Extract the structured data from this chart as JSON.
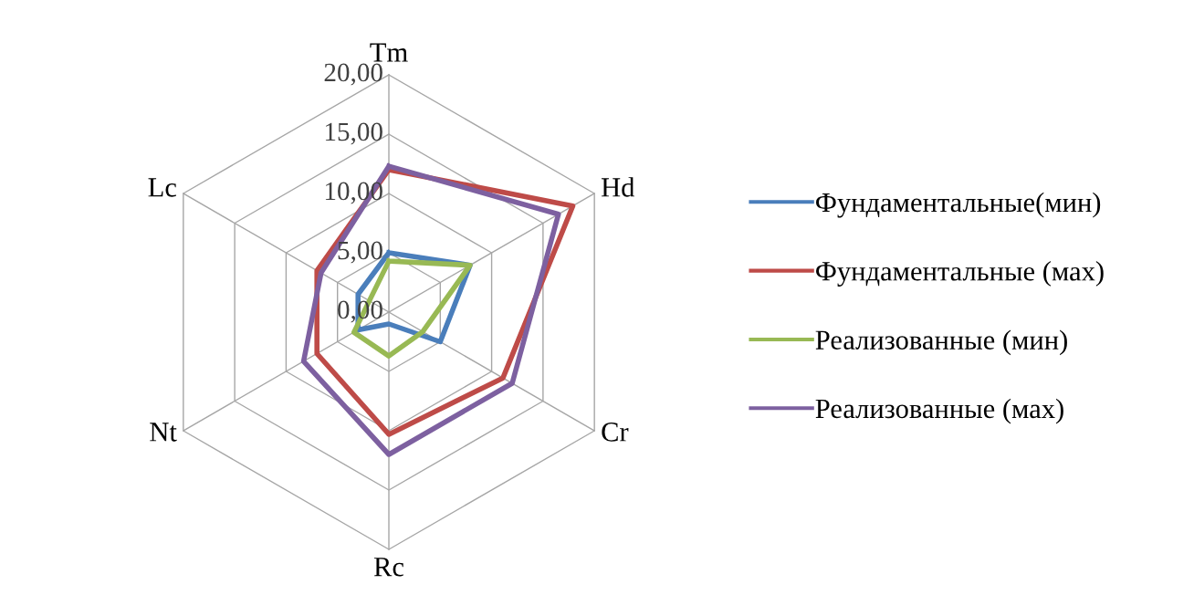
{
  "chart_data": {
    "type": "radar",
    "categories": [
      "Tm",
      "Hd",
      "Cr",
      "Rc",
      "Nt",
      "Lc"
    ],
    "ylim": [
      0,
      20
    ],
    "yticks": [
      {
        "value": 0,
        "label": "0,00"
      },
      {
        "value": 5,
        "label": "5,00"
      },
      {
        "value": 10,
        "label": "10,00"
      },
      {
        "value": 15,
        "label": "15,00"
      },
      {
        "value": 20,
        "label": "20,00"
      }
    ],
    "grid": true,
    "legend": "right",
    "series": [
      {
        "name": "Фундаментальные(мин)",
        "color": "#4a7ebb",
        "values": [
          5.0,
          7.9,
          5.0,
          1.0,
          3.0,
          3.0
        ]
      },
      {
        "name": "Фундаментальные (мах)",
        "color": "#be4b48",
        "values": [
          12.0,
          17.9,
          11.1,
          10.3,
          7.0,
          7.0
        ]
      },
      {
        "name": "Реализованные (мин)",
        "color": "#98b954",
        "values": [
          4.3,
          7.9,
          3.3,
          3.7,
          3.4,
          1.9
        ]
      },
      {
        "name": "Реализованные (мах)",
        "color": "#7d60a0",
        "values": [
          12.3,
          16.5,
          12.0,
          12.0,
          8.3,
          6.6
        ]
      }
    ]
  }
}
